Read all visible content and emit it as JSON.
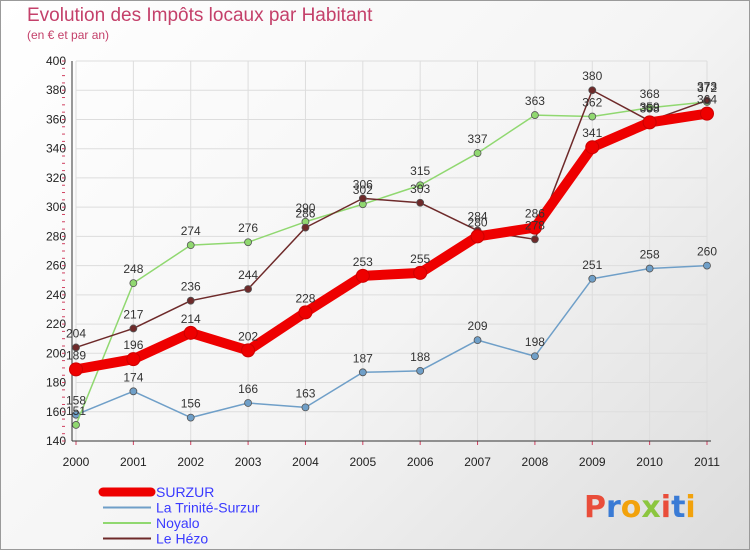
{
  "title": "Evolution des Impôts locaux par Habitant",
  "subtitle": "(en € et par an)",
  "logo": "Proxiti",
  "chart_data": {
    "type": "line",
    "x": [
      "2000",
      "2001",
      "2002",
      "2003",
      "2004",
      "2005",
      "2006",
      "2007",
      "2008",
      "2009",
      "2010",
      "2011"
    ],
    "ylim": [
      140,
      400
    ],
    "yticks": [
      140,
      160,
      180,
      200,
      220,
      240,
      260,
      280,
      300,
      320,
      340,
      360,
      380,
      400
    ],
    "grid": true,
    "legend_position": "bottom-left",
    "series": [
      {
        "name": "SURZUR",
        "color": "#ee0000",
        "values": [
          189,
          196,
          214,
          202,
          228,
          253,
          255,
          280,
          286,
          341,
          358,
          364
        ]
      },
      {
        "name": "La Trinité-Surzur",
        "color": "#6f9fc8",
        "values": [
          158,
          174,
          156,
          166,
          163,
          187,
          188,
          209,
          198,
          251,
          258,
          260
        ]
      },
      {
        "name": "Noyalo",
        "color": "#90d870",
        "values": [
          151,
          248,
          274,
          276,
          290,
          302,
          315,
          337,
          363,
          362,
          368,
          372
        ]
      },
      {
        "name": "Le Hézo",
        "color": "#6e2a2a",
        "values": [
          204,
          217,
          236,
          244,
          286,
          306,
          303,
          284,
          278,
          380,
          359,
          373
        ]
      }
    ]
  }
}
